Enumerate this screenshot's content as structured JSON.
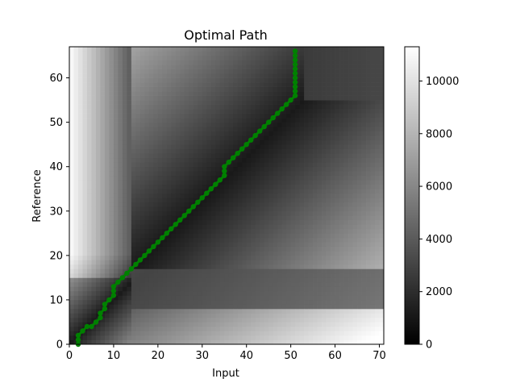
{
  "chart_data": {
    "type": "heatmap",
    "title": "Optimal Path",
    "xlabel": "Input",
    "ylabel": "Reference",
    "xlim": [
      0,
      71
    ],
    "ylim": [
      0,
      67
    ],
    "x_ticks": [
      0,
      10,
      20,
      30,
      40,
      50,
      60,
      70
    ],
    "y_ticks": [
      0,
      10,
      20,
      30,
      40,
      50,
      60
    ],
    "colormap": "gray",
    "colorbar": {
      "min": 0,
      "max": 11300,
      "ticks": [
        0,
        2000,
        4000,
        6000,
        8000,
        10000
      ]
    },
    "path_color": "#008000",
    "path": [
      [
        2,
        0
      ],
      [
        2,
        1
      ],
      [
        2,
        2
      ],
      [
        3,
        3
      ],
      [
        4,
        4
      ],
      [
        5,
        4
      ],
      [
        6,
        5
      ],
      [
        7,
        6
      ],
      [
        7,
        7
      ],
      [
        8,
        8
      ],
      [
        8,
        9
      ],
      [
        9,
        10
      ],
      [
        10,
        11
      ],
      [
        10,
        12
      ],
      [
        10,
        13
      ],
      [
        11,
        14
      ],
      [
        12,
        15
      ],
      [
        13,
        16
      ],
      [
        14,
        17
      ],
      [
        15,
        18
      ],
      [
        16,
        19
      ],
      [
        17,
        20
      ],
      [
        18,
        21
      ],
      [
        19,
        22
      ],
      [
        20,
        23
      ],
      [
        21,
        24
      ],
      [
        22,
        25
      ],
      [
        23,
        26
      ],
      [
        24,
        27
      ],
      [
        25,
        28
      ],
      [
        26,
        29
      ],
      [
        27,
        30
      ],
      [
        28,
        31
      ],
      [
        29,
        32
      ],
      [
        30,
        33
      ],
      [
        31,
        34
      ],
      [
        32,
        35
      ],
      [
        33,
        36
      ],
      [
        34,
        37
      ],
      [
        35,
        38
      ],
      [
        35,
        39
      ],
      [
        35,
        40
      ],
      [
        36,
        41
      ],
      [
        37,
        42
      ],
      [
        38,
        43
      ],
      [
        39,
        44
      ],
      [
        40,
        45
      ],
      [
        41,
        46
      ],
      [
        42,
        47
      ],
      [
        43,
        48
      ],
      [
        44,
        49
      ],
      [
        45,
        50
      ],
      [
        46,
        51
      ],
      [
        47,
        52
      ],
      [
        48,
        53
      ],
      [
        49,
        54
      ],
      [
        50,
        55
      ],
      [
        51,
        56
      ],
      [
        51,
        57
      ],
      [
        51,
        58
      ],
      [
        51,
        59
      ],
      [
        51,
        60
      ],
      [
        51,
        61
      ],
      [
        51,
        62
      ],
      [
        51,
        63
      ],
      [
        51,
        64
      ],
      [
        51,
        65
      ],
      [
        51,
        66
      ]
    ]
  }
}
